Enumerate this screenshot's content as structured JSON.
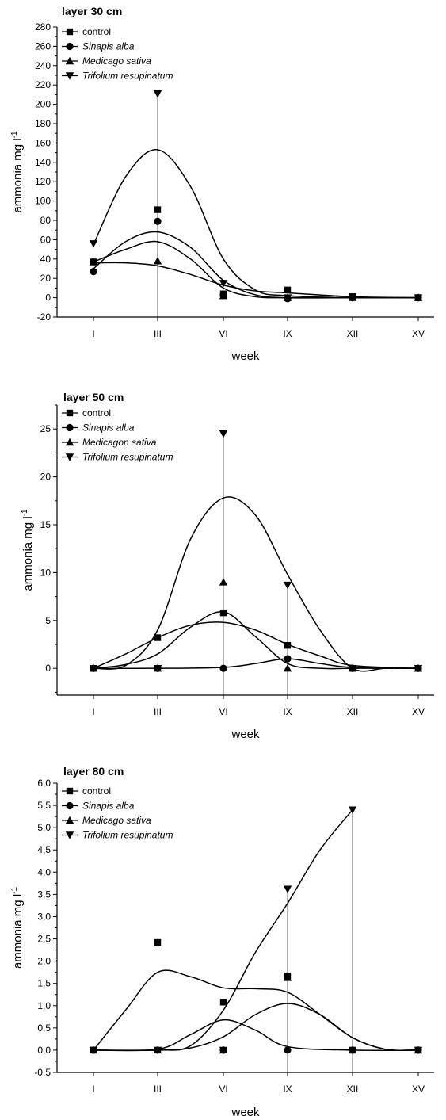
{
  "chart_data": [
    {
      "type": "scatter",
      "title": "layer 30 cm",
      "xlabel": "week",
      "ylabel": "ammonia mg l",
      "ylabel_sup": "-1",
      "categories": [
        "I",
        "III",
        "VI",
        "IX",
        "XII",
        "XV"
      ],
      "ylim": [
        -20,
        280
      ],
      "yticks": [
        "-20",
        "0",
        "20",
        "40",
        "60",
        "80",
        "100",
        "120",
        "140",
        "160",
        "180",
        "200",
        "220",
        "240",
        "260",
        "280"
      ],
      "ytick_values": [
        -20,
        0,
        20,
        40,
        60,
        80,
        100,
        120,
        140,
        160,
        180,
        200,
        220,
        240,
        260,
        280
      ],
      "legend_position": "top-left",
      "series": [
        {
          "name": "control",
          "marker": "square",
          "italic": false,
          "values": [
            37,
            91,
            4,
            8,
            1,
            0
          ],
          "curve": [
            [
              0,
              37
            ],
            [
              0.5,
              50
            ],
            [
              1,
              58
            ],
            [
              1.5,
              40
            ],
            [
              2,
              10
            ],
            [
              2.5,
              1
            ],
            [
              3,
              0
            ],
            [
              4,
              0
            ],
            [
              5,
              0
            ]
          ]
        },
        {
          "name": "Sinapis alba",
          "marker": "circle",
          "italic": true,
          "values": [
            27,
            79,
            3,
            -1,
            0,
            0
          ],
          "curve": [
            [
              0,
              30
            ],
            [
              0.5,
              58
            ],
            [
              1,
              68
            ],
            [
              1.5,
              52
            ],
            [
              2,
              18
            ],
            [
              2.5,
              3
            ],
            [
              3,
              0
            ],
            [
              4,
              0
            ],
            [
              5,
              0
            ]
          ]
        },
        {
          "name": "Medicago sativa",
          "marker": "triangle-up",
          "italic": true,
          "values": [
            37,
            38,
            2,
            0,
            0,
            0
          ],
          "curve": [
            [
              0,
              36
            ],
            [
              0.5,
              36
            ],
            [
              1,
              33
            ],
            [
              1.5,
              24
            ],
            [
              2,
              13
            ],
            [
              2.5,
              7
            ],
            [
              3,
              5
            ],
            [
              4,
              1
            ],
            [
              5,
              0
            ]
          ]
        },
        {
          "name": "Trifolium resupinatum",
          "marker": "triangle-down",
          "italic": true,
          "values": [
            56,
            211,
            15,
            0,
            1,
            0
          ],
          "curve": [
            [
              0,
              55
            ],
            [
              0.5,
              125
            ],
            [
              1,
              153
            ],
            [
              1.5,
              115
            ],
            [
              2,
              40
            ],
            [
              2.5,
              8
            ],
            [
              3,
              2
            ],
            [
              4,
              0
            ],
            [
              5,
              0
            ]
          ]
        }
      ],
      "error_bars": [
        [
          1,
          211
        ]
      ]
    },
    {
      "type": "scatter",
      "title": "layer 50 cm",
      "xlabel": "week",
      "ylabel": "ammonia mg l",
      "ylabel_sup": "-1",
      "categories": [
        "I",
        "III",
        "VI",
        "IX",
        "XII",
        "XV"
      ],
      "ylim": [
        -2.8,
        27.5
      ],
      "yticks": [
        "0",
        "5",
        "10",
        "15",
        "20",
        "25"
      ],
      "ytick_values": [
        0,
        5,
        10,
        15,
        20,
        25
      ],
      "legend_position": "top-left",
      "series": [
        {
          "name": "control",
          "marker": "square",
          "italic": false,
          "values": [
            0,
            3.2,
            5.8,
            2.4,
            0,
            0
          ],
          "curve": [
            [
              0,
              0
            ],
            [
              0.5,
              0.4
            ],
            [
              1,
              1.5
            ],
            [
              1.5,
              4.3
            ],
            [
              2,
              5.9
            ],
            [
              2.5,
              3.3
            ],
            [
              3,
              0.5
            ],
            [
              3.5,
              0
            ],
            [
              4,
              0
            ],
            [
              5,
              0
            ]
          ]
        },
        {
          "name": "Sinapis alba",
          "marker": "circle",
          "italic": true,
          "values": [
            0,
            0,
            0,
            1.0,
            0,
            0
          ],
          "curve": [
            [
              0,
              0
            ],
            [
              1,
              0
            ],
            [
              2,
              0.1
            ],
            [
              2.5,
              0.5
            ],
            [
              3,
              1.0
            ],
            [
              3.5,
              0.5
            ],
            [
              4,
              0.1
            ],
            [
              5,
              0
            ]
          ]
        },
        {
          "name": "Medicagon sativa",
          "marker": "triangle-up",
          "italic": true,
          "values": [
            0,
            0,
            9.0,
            0,
            0,
            0
          ],
          "curve": [
            [
              0,
              0
            ],
            [
              0.5,
              1.5
            ],
            [
              1,
              3.2
            ],
            [
              1.5,
              4.5
            ],
            [
              2,
              4.8
            ],
            [
              2.5,
              4.0
            ],
            [
              3,
              2.5
            ],
            [
              3.5,
              1.3
            ],
            [
              4,
              0.3
            ],
            [
              5,
              0
            ]
          ]
        },
        {
          "name": "Trifolium resupinatum",
          "marker": "triangle-down",
          "italic": true,
          "values": [
            0,
            0,
            24.5,
            8.7,
            0,
            0
          ],
          "curve": [
            [
              0,
              0
            ],
            [
              0.5,
              0.3
            ],
            [
              1,
              4
            ],
            [
              1.5,
              13.5
            ],
            [
              2,
              17.8
            ],
            [
              2.5,
              16
            ],
            [
              3,
              9.8
            ],
            [
              3.5,
              4
            ],
            [
              4,
              0
            ],
            [
              4.5,
              0
            ],
            [
              5,
              0
            ]
          ]
        }
      ],
      "error_bars": [
        [
          2,
          24.5
        ],
        [
          3,
          8.7
        ]
      ]
    },
    {
      "type": "scatter",
      "title": "layer 80 cm",
      "xlabel": "week",
      "ylabel": "ammonia mg l",
      "ylabel_sup": "-1",
      "categories": [
        "I",
        "III",
        "VI",
        "IX",
        "XII",
        "XV"
      ],
      "ylim": [
        -0.5,
        6.0
      ],
      "yticks": [
        "-0,5",
        "0,0",
        "0,5",
        "1,0",
        "1,5",
        "2,0",
        "2,5",
        "3,0",
        "3,5",
        "4,0",
        "4,5",
        "5,0",
        "5,5",
        "6,0"
      ],
      "ytick_values": [
        -0.5,
        0,
        0.5,
        1.0,
        1.5,
        2.0,
        2.5,
        3.0,
        3.5,
        4.0,
        4.5,
        5.0,
        5.5,
        6.0
      ],
      "legend_position": "top-left",
      "series": [
        {
          "name": "control",
          "marker": "square",
          "italic": false,
          "values": [
            0,
            2.42,
            1.08,
            1.67,
            0,
            0
          ],
          "curve": [
            [
              0,
              0
            ],
            [
              0.5,
              0.9
            ],
            [
              1,
              1.75
            ],
            [
              1.5,
              1.65
            ],
            [
              2,
              1.4
            ],
            [
              2.5,
              1.38
            ],
            [
              3,
              1.3
            ],
            [
              3.5,
              0.8
            ],
            [
              4,
              0.28
            ],
            [
              4.5,
              0.02
            ],
            [
              5,
              0
            ]
          ]
        },
        {
          "name": "Sinapis alba",
          "marker": "circle",
          "italic": true,
          "values": [
            0,
            0,
            0,
            0,
            0,
            0
          ],
          "curve": [
            [
              0,
              0
            ],
            [
              1,
              0.02
            ],
            [
              1.5,
              0.35
            ],
            [
              2,
              0.68
            ],
            [
              2.5,
              0.45
            ],
            [
              3,
              0.08
            ],
            [
              4,
              0
            ],
            [
              5,
              0
            ]
          ]
        },
        {
          "name": "Medicago sativa",
          "marker": "triangle-up",
          "italic": true,
          "values": [
            0,
            0,
            0,
            1.63,
            0,
            0
          ],
          "curve": [
            [
              0,
              0
            ],
            [
              1,
              0
            ],
            [
              1.5,
              0.05
            ],
            [
              2,
              0.3
            ],
            [
              2.5,
              0.8
            ],
            [
              3,
              1.05
            ],
            [
              3.5,
              0.8
            ],
            [
              4,
              0.28
            ],
            [
              4.5,
              0.02
            ],
            [
              5,
              0
            ]
          ]
        },
        {
          "name": "Trifolium resupinatum",
          "marker": "triangle-down",
          "italic": true,
          "values": [
            0,
            0,
            0,
            3.62,
            5.4,
            0
          ],
          "curve": [
            [
              0,
              0
            ],
            [
              1,
              0
            ],
            [
              1.5,
              0.1
            ],
            [
              2,
              0.9
            ],
            [
              2.5,
              2.2
            ],
            [
              3,
              3.3
            ],
            [
              3.5,
              4.5
            ],
            [
              4,
              5.4
            ]
          ]
        }
      ],
      "error_bars": [
        [
          3,
          3.62
        ],
        [
          4,
          5.4
        ]
      ]
    }
  ]
}
